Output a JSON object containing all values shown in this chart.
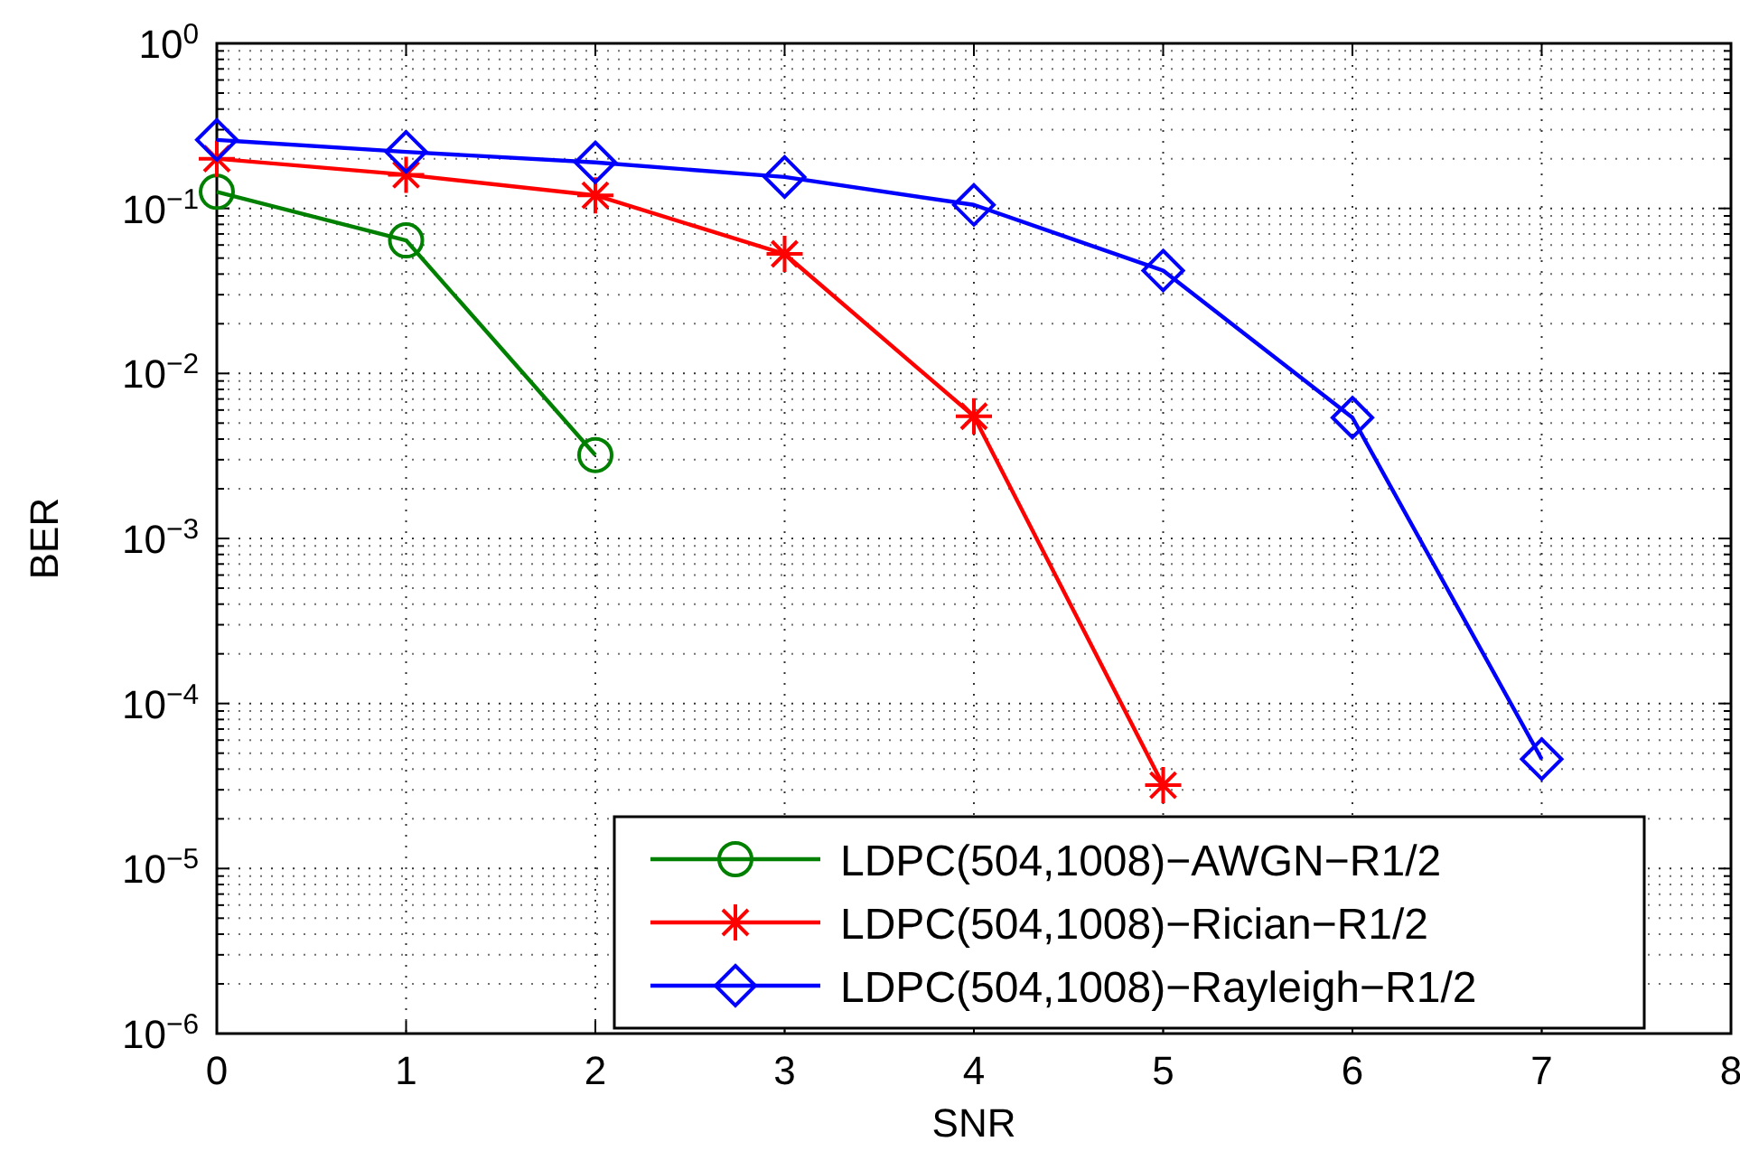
{
  "chart_data": {
    "type": "line",
    "xlabel": "SNR",
    "ylabel": "BER",
    "x": [
      0,
      1,
      2,
      3,
      4,
      5,
      6,
      7
    ],
    "series": [
      {
        "name": "LDPC(504,1008)−AWGN−R1/2",
        "color": "#008000",
        "marker": "circle",
        "values": [
          0.126,
          0.064,
          0.0032,
          null,
          null,
          null,
          null,
          null
        ]
      },
      {
        "name": "LDPC(504,1008)−Rician−R1/2",
        "color": "#ff0000",
        "marker": "cross",
        "values": [
          0.2,
          0.16,
          0.12,
          0.053,
          0.0055,
          3.2e-05,
          null,
          null
        ]
      },
      {
        "name": "LDPC(504,1008)−Rayleigh−R1/2",
        "color": "#0000ff",
        "marker": "diamond",
        "values": [
          0.26,
          0.22,
          0.19,
          0.155,
          0.105,
          0.042,
          0.0054,
          4.6e-05
        ]
      }
    ],
    "xlim": [
      0,
      8
    ],
    "xticks": [
      0,
      1,
      2,
      3,
      4,
      5,
      6,
      7,
      8
    ],
    "ylim": [
      1e-06,
      1
    ],
    "log": "y",
    "yticks": [
      {
        "value": 1e-06,
        "label": "10$^{−6}$"
      },
      {
        "value": 1e-05,
        "label": "10$^{−5}$"
      },
      {
        "value": 0.0001,
        "label": "10$^{−4}$"
      },
      {
        "value": 0.001,
        "label": "10$^{−3}$"
      },
      {
        "value": 0.01,
        "label": "10$^{−2}$"
      },
      {
        "value": 0.1,
        "label": "10$^{−1}$"
      },
      {
        "value": 1,
        "label": "10$^{0}$"
      }
    ],
    "grid": true,
    "legend": "bottom right",
    "line_style": "solid"
  }
}
